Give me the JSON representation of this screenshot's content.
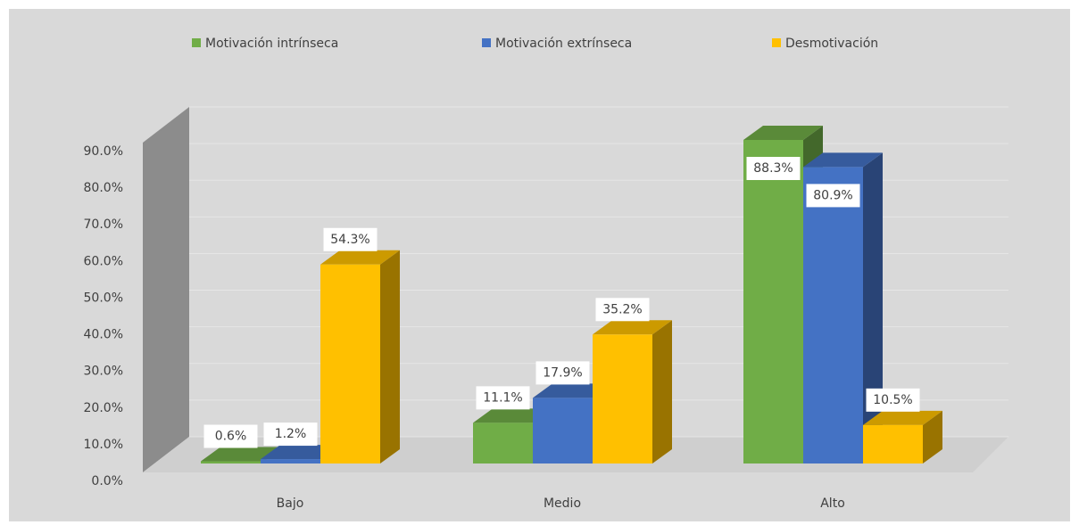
{
  "chart_data": {
    "type": "bar3d",
    "categories": [
      "Bajo",
      "Medio",
      "Alto"
    ],
    "series": [
      {
        "name": "Motivación intrínseca",
        "color": "#70ad47",
        "values": [
          0.6,
          11.1,
          88.3
        ],
        "value_labels": [
          "0.6%",
          "11.1%",
          "88.3%"
        ]
      },
      {
        "name": "Motivación extrínseca",
        "color": "#4472c4",
        "values": [
          1.2,
          17.9,
          80.9
        ],
        "value_labels": [
          "1.2%",
          "17.9%",
          "80.9%"
        ]
      },
      {
        "name": "Desmotivación",
        "color": "#ffc000",
        "values": [
          54.3,
          35.2,
          10.5
        ],
        "value_labels": [
          "54.3%",
          "35.2%",
          "10.5%"
        ]
      }
    ],
    "ylim": [
      0,
      90
    ],
    "yticks": [
      {
        "value": 0,
        "label": "0.0%"
      },
      {
        "value": 10,
        "label": "10.0%"
      },
      {
        "value": 20,
        "label": "20.0%"
      },
      {
        "value": 30,
        "label": "30.0%"
      },
      {
        "value": 40,
        "label": "40.0%"
      },
      {
        "value": 50,
        "label": "50.0%"
      },
      {
        "value": 60,
        "label": "60.0%"
      },
      {
        "value": 70,
        "label": "70.0%"
      },
      {
        "value": 80,
        "label": "80.0%"
      },
      {
        "value": 90,
        "label": "90.0%"
      }
    ],
    "grid": true,
    "legend": "top"
  }
}
